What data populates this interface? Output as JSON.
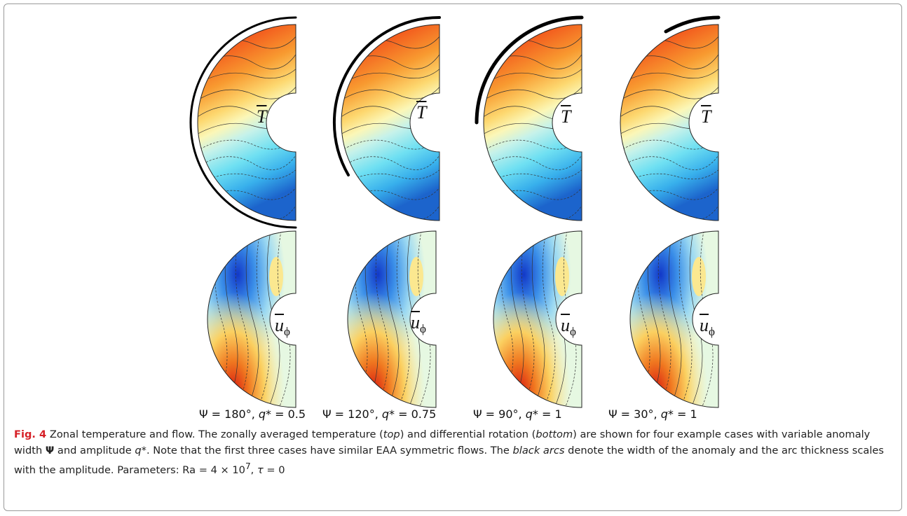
{
  "panels": [
    {
      "caption": {
        "psi": "Ψ = 180°, ",
        "q": "q",
        "rest": "* = 0.5"
      }
    },
    {
      "caption": {
        "psi": "Ψ = 120°, ",
        "q": "q",
        "rest": "* = 0.75"
      }
    },
    {
      "caption": {
        "psi": "Ψ = 90°, ",
        "q": "q",
        "rest": "* = 1"
      }
    },
    {
      "caption": {
        "psi": "Ψ = 30°, ",
        "q": "q",
        "rest": "* = 1"
      }
    }
  ],
  "top_label": "T",
  "bottom_label": {
    "main": "u",
    "sub": "ϕ"
  },
  "figure_caption": [
    "Fig. 4",
    " Zonal temperature and flow. The zonally averaged temperature (",
    "top",
    ") and differential rotation (",
    "bottom",
    ") are shown for four example cases with variable anomaly width ",
    "Ψ",
    " and amplitude ",
    "q",
    "*. Note that the first three cases have similar EAA symmetric flows. The ",
    "black arcs",
    " denote the width of the anomaly and the arc thickness scales with the amplitude. Parameters: Ra = 4 × 10",
    "7",
    ", ",
    "τ",
    " = 0"
  ]
}
